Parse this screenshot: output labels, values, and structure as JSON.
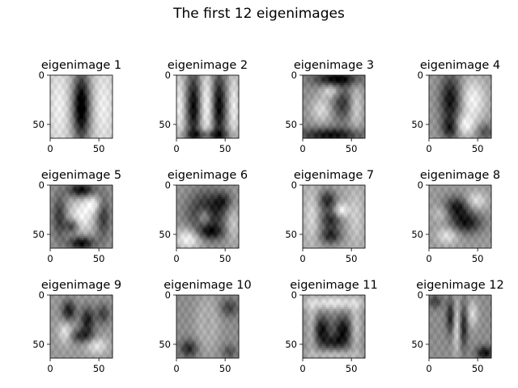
{
  "chart_data": {
    "type": "image-grid",
    "title": "The first 12 eigenimages",
    "colormap": "gray",
    "image_size": [
      64,
      64
    ],
    "panels": [
      {
        "title": "eigenimage 1",
        "xticks": [
          "0",
          "50"
        ],
        "yticks": [
          "0",
          "50"
        ],
        "xlim": [
          0,
          64
        ],
        "ylim": [
          64,
          0
        ],
        "pattern": "dark vertical bar in center, light sides"
      },
      {
        "title": "eigenimage 2",
        "xticks": [
          "0",
          "50"
        ],
        "yticks": [
          "0",
          "50"
        ],
        "xlim": [
          0,
          64
        ],
        "ylim": [
          64,
          0
        ],
        "pattern": "two dark vertical columns"
      },
      {
        "title": "eigenimage 3",
        "xticks": [
          "0",
          "50"
        ],
        "yticks": [
          "0",
          "50"
        ],
        "xlim": [
          0,
          64
        ],
        "ylim": [
          64,
          0
        ],
        "pattern": "dark top and bottom, mottled center"
      },
      {
        "title": "eigenimage 4",
        "xticks": [
          "0",
          "50"
        ],
        "yticks": [
          "0",
          "50"
        ],
        "xlim": [
          0,
          64
        ],
        "ylim": [
          64,
          0
        ],
        "pattern": "dark left lobe, light right"
      },
      {
        "title": "eigenimage 5",
        "xticks": [
          "0",
          "50"
        ],
        "yticks": [
          "0",
          "50"
        ],
        "xlim": [
          0,
          64
        ],
        "ylim": [
          64,
          0
        ],
        "pattern": "dark ring around light center"
      },
      {
        "title": "eigenimage 6",
        "xticks": [
          "0",
          "50"
        ],
        "yticks": [
          "0",
          "50"
        ],
        "xlim": [
          0,
          64
        ],
        "ylim": [
          64,
          0
        ],
        "pattern": "dark arc, light lower left"
      },
      {
        "title": "eigenimage 7",
        "xticks": [
          "0",
          "50"
        ],
        "yticks": [
          "0",
          "50"
        ],
        "xlim": [
          0,
          64
        ],
        "ylim": [
          64,
          0
        ],
        "pattern": "dark loop shape"
      },
      {
        "title": "eigenimage 8",
        "xticks": [
          "0",
          "50"
        ],
        "yticks": [
          "0",
          "50"
        ],
        "xlim": [
          0,
          64
        ],
        "ylim": [
          64,
          0
        ],
        "pattern": "dark diagonal swirl"
      },
      {
        "title": "eigenimage 9",
        "xticks": [
          "0",
          "50"
        ],
        "yticks": [
          "0",
          "50"
        ],
        "xlim": [
          0,
          64
        ],
        "ylim": [
          64,
          0
        ],
        "pattern": "dark diagonal strokes"
      },
      {
        "title": "eigenimage 10",
        "xticks": [
          "0",
          "50"
        ],
        "yticks": [
          "0",
          "50"
        ],
        "xlim": [
          0,
          64
        ],
        "ylim": [
          64,
          0
        ],
        "pattern": "gray with faint light oval"
      },
      {
        "title": "eigenimage 11",
        "xticks": [
          "0",
          "50"
        ],
        "yticks": [
          "0",
          "50"
        ],
        "xlim": [
          0,
          64
        ],
        "ylim": [
          64,
          0
        ],
        "pattern": "light top band, dark blobs lower"
      },
      {
        "title": "eigenimage 12",
        "xticks": [
          "0",
          "50"
        ],
        "yticks": [
          "0",
          "50"
        ],
        "xlim": [
          0,
          64
        ],
        "ylim": [
          64,
          0
        ],
        "pattern": "fine vertical stripes, dark corners"
      }
    ]
  }
}
